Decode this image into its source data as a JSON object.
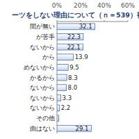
{
  "chart_data": {
    "type": "bar",
    "orientation": "horizontal",
    "title": "ーツをしない理由について（ｎ＝539）複",
    "categories": [
      "間が無い",
      "が苦手",
      "ないから",
      "から",
      "めないから",
      "かるから",
      "ないから",
      "ないから",
      "ないから",
      "その他",
      "由はない"
    ],
    "values": [
      32.1,
      22.3,
      22.1,
      13.9,
      9.5,
      8.3,
      8.0,
      3.3,
      2.2,
      1.5,
      29.1
    ],
    "value_labels": [
      "32.1",
      "22.3",
      "22.1",
      "13.9",
      "9.5",
      "8.3",
      "8.0",
      "3.3",
      "2.2",
      null,
      "29.1"
    ],
    "data_labels": true,
    "color": "#c5d6f0",
    "xlim": [
      0,
      60
    ],
    "xticks": [
      {
        "value": 0,
        "label": "0%"
      },
      {
        "value": 20,
        "label": "20%"
      },
      {
        "value": 40,
        "label": "40%"
      },
      {
        "value": 60,
        "label": "60%"
      }
    ],
    "grid": false
  }
}
